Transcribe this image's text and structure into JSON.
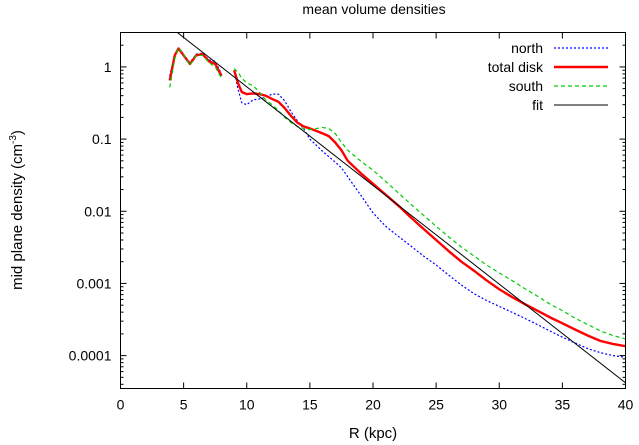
{
  "chart_data": {
    "type": "line",
    "title": "mean volume densities",
    "xlabel": "R (kpc)",
    "ylabel": "mid plane density (cm",
    "ylabel_sup": "-3",
    "ylabel_close": ")",
    "xlim": [
      0,
      40
    ],
    "ylim": [
      3.5e-05,
      3.0
    ],
    "yscale": "log",
    "grid": false,
    "legend_position": "top-right",
    "x_ticks": [
      0,
      5,
      10,
      15,
      20,
      25,
      30,
      35,
      40
    ],
    "x_tick_labels": [
      "0",
      "5",
      "10",
      "15",
      "20",
      "25",
      "30",
      "35",
      "40"
    ],
    "y_ticks": [
      0.0001,
      0.001,
      0.01,
      0.1,
      1
    ],
    "y_tick_labels": [
      "0.0001",
      "0.001",
      "0.01",
      "0.1",
      "1"
    ],
    "series": [
      {
        "name": "north",
        "color": "#0000ff",
        "dash": "2,2",
        "width": 1.2,
        "segments": [
          [
            [
              3.9,
              0.75
            ],
            [
              4.3,
              1.5
            ],
            [
              4.6,
              1.75
            ],
            [
              5.0,
              1.45
            ],
            [
              5.5,
              1.15
            ],
            [
              6.0,
              1.5
            ],
            [
              6.5,
              1.55
            ],
            [
              7.0,
              1.25
            ],
            [
              7.5,
              1.2
            ],
            [
              8.0,
              0.8
            ]
          ],
          [
            [
              9.0,
              0.9
            ],
            [
              9.3,
              0.5
            ],
            [
              9.6,
              0.32
            ],
            [
              10.0,
              0.3
            ],
            [
              10.5,
              0.35
            ],
            [
              11.0,
              0.36
            ],
            [
              11.5,
              0.38
            ],
            [
              12.0,
              0.42
            ],
            [
              12.5,
              0.42
            ],
            [
              13.0,
              0.34
            ],
            [
              13.5,
              0.24
            ],
            [
              14.0,
              0.18
            ],
            [
              14.5,
              0.14
            ],
            [
              15.0,
              0.1
            ],
            [
              16.0,
              0.068
            ],
            [
              17.0,
              0.048
            ],
            [
              17.5,
              0.04
            ],
            [
              18.0,
              0.03
            ],
            [
              19.0,
              0.017
            ],
            [
              20.0,
              0.0095
            ],
            [
              21.0,
              0.0062
            ],
            [
              22.0,
              0.0045
            ],
            [
              23.0,
              0.0033
            ],
            [
              24.0,
              0.0024
            ],
            [
              25.0,
              0.0018
            ],
            [
              26.0,
              0.0013
            ],
            [
              27.0,
              0.00095
            ],
            [
              28.0,
              0.00072
            ],
            [
              29.0,
              0.00058
            ],
            [
              30.0,
              0.00048
            ],
            [
              31.0,
              0.0004
            ],
            [
              32.0,
              0.00033
            ],
            [
              33.0,
              0.00027
            ],
            [
              34.0,
              0.00022
            ],
            [
              35.0,
              0.00018
            ],
            [
              36.0,
              0.00015
            ],
            [
              37.0,
              0.000125
            ],
            [
              38.0,
              0.00011
            ],
            [
              39.0,
              0.0001
            ],
            [
              40.0,
              9.5e-05
            ]
          ]
        ]
      },
      {
        "name": "total disk",
        "color": "#ff0000",
        "dash": "",
        "width": 2.4,
        "segments": [
          [
            [
              3.9,
              0.65
            ],
            [
              4.3,
              1.45
            ],
            [
              4.6,
              1.8
            ],
            [
              5.0,
              1.45
            ],
            [
              5.5,
              1.1
            ],
            [
              6.0,
              1.45
            ],
            [
              6.5,
              1.5
            ],
            [
              7.0,
              1.2
            ],
            [
              7.5,
              1.1
            ],
            [
              8.0,
              0.75
            ]
          ],
          [
            [
              9.0,
              0.9
            ],
            [
              9.3,
              0.6
            ],
            [
              9.6,
              0.45
            ],
            [
              10.0,
              0.42
            ],
            [
              10.5,
              0.43
            ],
            [
              11.0,
              0.42
            ],
            [
              11.5,
              0.4
            ],
            [
              12.0,
              0.36
            ],
            [
              12.5,
              0.33
            ],
            [
              13.0,
              0.27
            ],
            [
              13.5,
              0.21
            ],
            [
              14.0,
              0.17
            ],
            [
              14.5,
              0.15
            ],
            [
              15.0,
              0.14
            ],
            [
              15.5,
              0.13
            ],
            [
              16.0,
              0.12
            ],
            [
              16.5,
              0.11
            ],
            [
              17.0,
              0.09
            ],
            [
              17.5,
              0.07
            ],
            [
              18.0,
              0.05
            ],
            [
              19.0,
              0.034
            ],
            [
              20.0,
              0.024
            ],
            [
              21.0,
              0.017
            ],
            [
              22.0,
              0.012
            ],
            [
              23.0,
              0.0082
            ],
            [
              24.0,
              0.0057
            ],
            [
              25.0,
              0.004
            ],
            [
              26.0,
              0.0028
            ],
            [
              27.0,
              0.002
            ],
            [
              28.0,
              0.0015
            ],
            [
              29.0,
              0.0011
            ],
            [
              30.0,
              0.00083
            ],
            [
              31.0,
              0.00065
            ],
            [
              32.0,
              0.00052
            ],
            [
              33.0,
              0.00042
            ],
            [
              34.0,
              0.00034
            ],
            [
              35.0,
              0.00028
            ],
            [
              36.0,
              0.00023
            ],
            [
              37.0,
              0.00019
            ],
            [
              38.0,
              0.00016
            ],
            [
              39.0,
              0.000145
            ],
            [
              40.0,
              0.000135
            ]
          ]
        ]
      },
      {
        "name": "south",
        "color": "#00cc00",
        "dash": "4,3",
        "width": 1.2,
        "segments": [
          [
            [
              3.9,
              0.52
            ],
            [
              4.3,
              1.3
            ],
            [
              4.6,
              1.85
            ],
            [
              5.0,
              1.5
            ],
            [
              5.5,
              1.05
            ],
            [
              6.0,
              1.45
            ],
            [
              6.5,
              1.45
            ],
            [
              7.0,
              1.15
            ],
            [
              7.5,
              1.0
            ],
            [
              8.0,
              0.7
            ]
          ],
          [
            [
              9.0,
              0.95
            ],
            [
              9.3,
              0.85
            ],
            [
              9.6,
              0.7
            ],
            [
              10.0,
              0.6
            ],
            [
              10.5,
              0.55
            ],
            [
              11.0,
              0.45
            ],
            [
              11.5,
              0.35
            ],
            [
              12.0,
              0.3
            ],
            [
              12.5,
              0.25
            ],
            [
              13.0,
              0.2
            ],
            [
              13.5,
              0.17
            ],
            [
              14.0,
              0.15
            ],
            [
              14.5,
              0.14
            ],
            [
              15.0,
              0.135
            ],
            [
              15.5,
              0.14
            ],
            [
              16.0,
              0.145
            ],
            [
              16.5,
              0.14
            ],
            [
              17.0,
              0.12
            ],
            [
              17.5,
              0.09
            ],
            [
              18.0,
              0.07
            ],
            [
              19.0,
              0.05
            ],
            [
              20.0,
              0.037
            ],
            [
              21.0,
              0.026
            ],
            [
              22.0,
              0.018
            ],
            [
              23.0,
              0.0125
            ],
            [
              24.0,
              0.0088
            ],
            [
              25.0,
              0.0062
            ],
            [
              26.0,
              0.0044
            ],
            [
              27.0,
              0.0032
            ],
            [
              28.0,
              0.0024
            ],
            [
              29.0,
              0.0018
            ],
            [
              30.0,
              0.0014
            ],
            [
              31.0,
              0.0011
            ],
            [
              32.0,
              0.00085
            ],
            [
              33.0,
              0.00067
            ],
            [
              34.0,
              0.00052
            ],
            [
              35.0,
              0.00042
            ],
            [
              36.0,
              0.00033
            ],
            [
              37.0,
              0.00027
            ],
            [
              38.0,
              0.00022
            ],
            [
              39.0,
              0.00019
            ],
            [
              40.0,
              0.00017
            ]
          ]
        ]
      },
      {
        "name": "fit",
        "color": "#000000",
        "dash": "",
        "width": 1.0,
        "segments": [
          [
            [
              4.5,
              3.0
            ],
            [
              40.0,
              4.2e-05
            ]
          ]
        ]
      }
    ]
  }
}
